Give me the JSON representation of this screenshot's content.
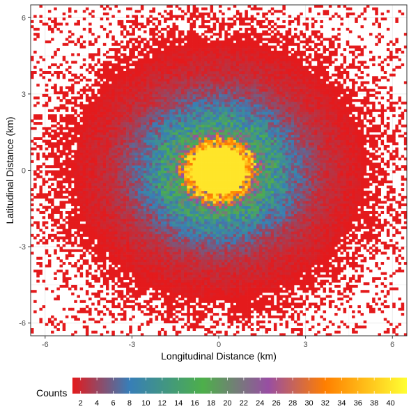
{
  "chart_data": {
    "type": "heatmap",
    "title": "",
    "xlabel": "Longitudinal Distance (km)",
    "ylabel": "Latitudinal Distance (km)",
    "xlim": [
      -6.5,
      6.5
    ],
    "ylim": [
      -6.5,
      6.5
    ],
    "x_ticks": [
      -6,
      -3,
      0,
      3,
      6
    ],
    "y_ticks": [
      -6,
      -3,
      0,
      3,
      6
    ],
    "x_tick_labels": [
      "-6",
      "-3",
      "0",
      "3",
      "6"
    ],
    "y_tick_labels": [
      "-6",
      "-3",
      "0",
      "3",
      "6"
    ],
    "grid": true,
    "bin_width_km": 0.1,
    "distribution": "radially symmetric count density centred at (0, 0); counts saturate at ~40 within radius ~1 km and fall to 1 near radius ~5-6 km",
    "density_model": {
      "center": [
        0,
        0
      ],
      "peak_count": 40,
      "saturated_radius_km": 1.0,
      "radial_profile": [
        {
          "r": 0.0,
          "count": 40
        },
        {
          "r": 1.0,
          "count": 40
        },
        {
          "r": 1.5,
          "count": 18
        },
        {
          "r": 2.0,
          "count": 12
        },
        {
          "r": 2.5,
          "count": 8
        },
        {
          "r": 3.0,
          "count": 5
        },
        {
          "r": 3.5,
          "count": 3
        },
        {
          "r": 4.0,
          "count": 2
        },
        {
          "r": 5.0,
          "count": 1
        },
        {
          "r": 6.0,
          "count": 0.5
        },
        {
          "r": 7.0,
          "count": 0.2
        }
      ]
    },
    "colorbar": {
      "title": "Counts",
      "range": [
        1,
        42
      ],
      "ticks": [
        2,
        4,
        6,
        8,
        10,
        12,
        14,
        16,
        18,
        20,
        22,
        24,
        26,
        28,
        30,
        32,
        34,
        36,
        38,
        40
      ],
      "tick_labels": [
        "2",
        "4",
        "6",
        "8",
        "10",
        "12",
        "14",
        "16",
        "18",
        "20",
        "22",
        "24",
        "26",
        "28",
        "30",
        "32",
        "34",
        "36",
        "38",
        "40"
      ],
      "stops": [
        {
          "value": 1,
          "color": "#e41a1c"
        },
        {
          "value": 8,
          "color": "#377eb8"
        },
        {
          "value": 17,
          "color": "#4daf4a"
        },
        {
          "value": 25,
          "color": "#984ea3"
        },
        {
          "value": 32,
          "color": "#ff7f00"
        },
        {
          "value": 42,
          "color": "#ffff33"
        }
      ],
      "placement": "bottom"
    },
    "colors": {
      "panel_border": "#333333",
      "grid": "#ebebeb"
    }
  }
}
